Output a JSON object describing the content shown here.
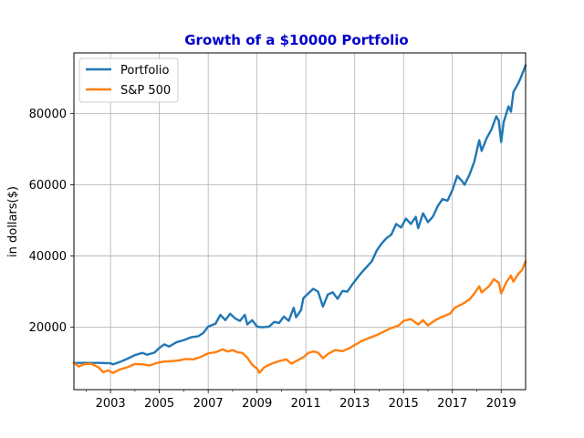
{
  "chart_data": {
    "type": "line",
    "title": "Growth of a $10000 Portfolio",
    "title_color": "#0000cc",
    "xlabel": "",
    "ylabel": "in dollars($)",
    "xlim": [
      2001.5,
      2020.0
    ],
    "ylim": [
      2500,
      97000
    ],
    "x_ticks": [
      2003,
      2005,
      2007,
      2009,
      2011,
      2013,
      2015,
      2017,
      2019
    ],
    "x_minor_ticks": [
      2002,
      2004,
      2006,
      2008,
      2010,
      2012,
      2014,
      2016,
      2018
    ],
    "y_ticks": [
      20000,
      40000,
      60000,
      80000
    ],
    "grid": true,
    "legend_position": "upper-left",
    "series": [
      {
        "name": "Portfolio",
        "color": "#1f77b4",
        "points": [
          [
            2001.5,
            10000
          ],
          [
            2002.0,
            10000
          ],
          [
            2002.5,
            10000
          ],
          [
            2003.0,
            9900
          ],
          [
            2003.1,
            9600
          ],
          [
            2003.4,
            10300
          ],
          [
            2003.7,
            11200
          ],
          [
            2004.0,
            12200
          ],
          [
            2004.3,
            12800
          ],
          [
            2004.5,
            12300
          ],
          [
            2004.8,
            12900
          ],
          [
            2005.0,
            14200
          ],
          [
            2005.2,
            15200
          ],
          [
            2005.4,
            14600
          ],
          [
            2005.7,
            15800
          ],
          [
            2006.0,
            16400
          ],
          [
            2006.3,
            17200
          ],
          [
            2006.6,
            17500
          ],
          [
            2006.8,
            18400
          ],
          [
            2007.0,
            20200
          ],
          [
            2007.3,
            21000
          ],
          [
            2007.5,
            23500
          ],
          [
            2007.7,
            22000
          ],
          [
            2007.9,
            23800
          ],
          [
            2008.1,
            22500
          ],
          [
            2008.3,
            21800
          ],
          [
            2008.5,
            23500
          ],
          [
            2008.6,
            20800
          ],
          [
            2008.8,
            22000
          ],
          [
            2009.0,
            20200
          ],
          [
            2009.2,
            20000
          ],
          [
            2009.5,
            20200
          ],
          [
            2009.7,
            21500
          ],
          [
            2009.9,
            21200
          ],
          [
            2010.1,
            23000
          ],
          [
            2010.3,
            21800
          ],
          [
            2010.5,
            25500
          ],
          [
            2010.6,
            22800
          ],
          [
            2010.8,
            24800
          ],
          [
            2010.9,
            28200
          ],
          [
            2011.1,
            29500
          ],
          [
            2011.3,
            30800
          ],
          [
            2011.5,
            30000
          ],
          [
            2011.7,
            25800
          ],
          [
            2011.9,
            29200
          ],
          [
            2012.1,
            29800
          ],
          [
            2012.3,
            28000
          ],
          [
            2012.5,
            30200
          ],
          [
            2012.7,
            30000
          ],
          [
            2012.9,
            32000
          ],
          [
            2013.1,
            33800
          ],
          [
            2013.3,
            35500
          ],
          [
            2013.5,
            37000
          ],
          [
            2013.7,
            38500
          ],
          [
            2013.9,
            41500
          ],
          [
            2014.1,
            43500
          ],
          [
            2014.3,
            45000
          ],
          [
            2014.5,
            46000
          ],
          [
            2014.7,
            49000
          ],
          [
            2014.9,
            48000
          ],
          [
            2015.1,
            50500
          ],
          [
            2015.3,
            49000
          ],
          [
            2015.5,
            51000
          ],
          [
            2015.6,
            47800
          ],
          [
            2015.8,
            52000
          ],
          [
            2016.0,
            49500
          ],
          [
            2016.2,
            51000
          ],
          [
            2016.4,
            54000
          ],
          [
            2016.6,
            56000
          ],
          [
            2016.8,
            55500
          ],
          [
            2017.0,
            58500
          ],
          [
            2017.2,
            62500
          ],
          [
            2017.4,
            61000
          ],
          [
            2017.5,
            60000
          ],
          [
            2017.7,
            62800
          ],
          [
            2017.9,
            66500
          ],
          [
            2018.1,
            72500
          ],
          [
            2018.2,
            69500
          ],
          [
            2018.4,
            73000
          ],
          [
            2018.6,
            75500
          ],
          [
            2018.8,
            79200
          ],
          [
            2018.9,
            78000
          ],
          [
            2019.0,
            72000
          ],
          [
            2019.1,
            77500
          ],
          [
            2019.3,
            82000
          ],
          [
            2019.4,
            80500
          ],
          [
            2019.5,
            86000
          ],
          [
            2019.7,
            88500
          ],
          [
            2019.8,
            90000
          ],
          [
            2020.0,
            93500
          ]
        ]
      },
      {
        "name": "S&P 500",
        "color": "#ff7f0e",
        "points": [
          [
            2001.5,
            10000
          ],
          [
            2001.7,
            9000
          ],
          [
            2001.9,
            9600
          ],
          [
            2002.2,
            9800
          ],
          [
            2002.5,
            8800
          ],
          [
            2002.7,
            7400
          ],
          [
            2002.9,
            7900
          ],
          [
            2003.1,
            7200
          ],
          [
            2003.4,
            8200
          ],
          [
            2003.7,
            8800
          ],
          [
            2004.0,
            9700
          ],
          [
            2004.3,
            9600
          ],
          [
            2004.6,
            9300
          ],
          [
            2004.9,
            10000
          ],
          [
            2005.2,
            10400
          ],
          [
            2005.5,
            10500
          ],
          [
            2005.8,
            10700
          ],
          [
            2006.1,
            11100
          ],
          [
            2006.4,
            11000
          ],
          [
            2006.7,
            11700
          ],
          [
            2007.0,
            12700
          ],
          [
            2007.3,
            13000
          ],
          [
            2007.6,
            13800
          ],
          [
            2007.8,
            13200
          ],
          [
            2008.0,
            13600
          ],
          [
            2008.2,
            13000
          ],
          [
            2008.4,
            12800
          ],
          [
            2008.6,
            11500
          ],
          [
            2008.8,
            9500
          ],
          [
            2009.0,
            8400
          ],
          [
            2009.1,
            7200
          ],
          [
            2009.3,
            8800
          ],
          [
            2009.6,
            9800
          ],
          [
            2009.9,
            10500
          ],
          [
            2010.2,
            11000
          ],
          [
            2010.4,
            9800
          ],
          [
            2010.6,
            10500
          ],
          [
            2010.9,
            11600
          ],
          [
            2011.1,
            12800
          ],
          [
            2011.3,
            13200
          ],
          [
            2011.5,
            12900
          ],
          [
            2011.7,
            11300
          ],
          [
            2011.9,
            12500
          ],
          [
            2012.2,
            13600
          ],
          [
            2012.5,
            13300
          ],
          [
            2012.8,
            14200
          ],
          [
            2013.0,
            15000
          ],
          [
            2013.3,
            16200
          ],
          [
            2013.6,
            17000
          ],
          [
            2013.9,
            17800
          ],
          [
            2014.2,
            18800
          ],
          [
            2014.5,
            19800
          ],
          [
            2014.8,
            20500
          ],
          [
            2015.0,
            21800
          ],
          [
            2015.3,
            22300
          ],
          [
            2015.6,
            20800
          ],
          [
            2015.8,
            22000
          ],
          [
            2016.0,
            20500
          ],
          [
            2016.3,
            22000
          ],
          [
            2016.6,
            23000
          ],
          [
            2016.9,
            23800
          ],
          [
            2017.1,
            25500
          ],
          [
            2017.4,
            26500
          ],
          [
            2017.7,
            27800
          ],
          [
            2017.9,
            29500
          ],
          [
            2018.1,
            31500
          ],
          [
            2018.2,
            29800
          ],
          [
            2018.5,
            31500
          ],
          [
            2018.7,
            33500
          ],
          [
            2018.9,
            32500
          ],
          [
            2019.0,
            29500
          ],
          [
            2019.2,
            32500
          ],
          [
            2019.4,
            34500
          ],
          [
            2019.5,
            32800
          ],
          [
            2019.7,
            35000
          ],
          [
            2019.85,
            36000
          ],
          [
            2020.0,
            38500
          ]
        ]
      }
    ]
  }
}
